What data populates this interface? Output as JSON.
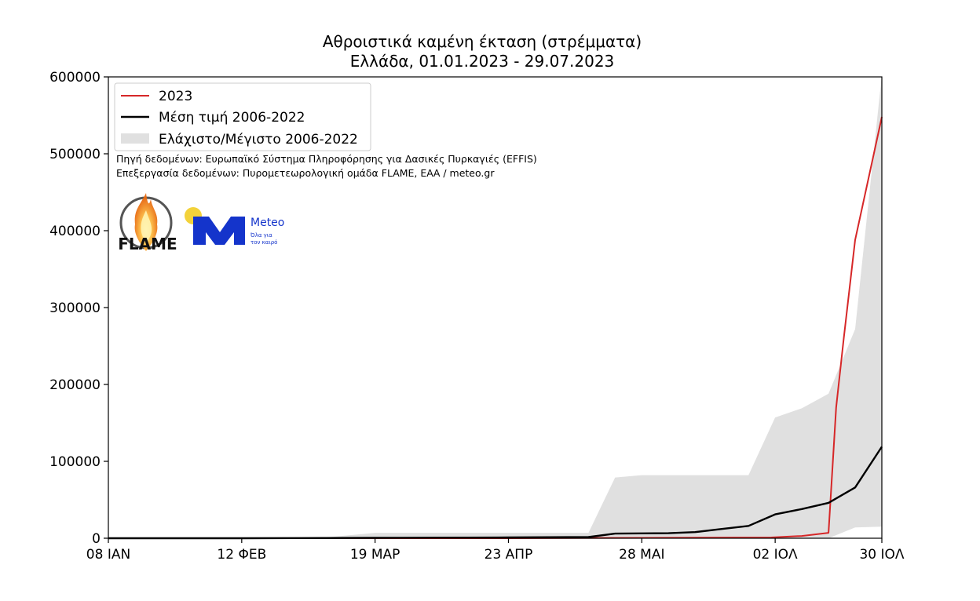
{
  "chart_data": {
    "type": "line",
    "title": "Αθροιστικά καμένη έκταση (στρέμματα)",
    "subtitle": "Ελλάδα, 01.01.2023 - 29.07.2023",
    "xlabel": "",
    "ylabel": "",
    "x_ticks": [
      "08 ΙΑΝ",
      "12 ΦΕΒ",
      "19 ΜΑΡ",
      "23 ΑΠΡ",
      "28 ΜΑΙ",
      "02 ΙΟΛ",
      "30 ΙΟΛ"
    ],
    "y_ticks": [
      "0",
      "100000",
      "200000",
      "300000",
      "400000",
      "500000",
      "600000"
    ],
    "xlim": [
      "2023-01-08",
      "2023-07-30"
    ],
    "ylim": [
      0,
      600000
    ],
    "grid": false,
    "legend_position": "top-left",
    "series": [
      {
        "name": "2023",
        "color": "#d62728",
        "kind": "line",
        "points": [
          [
            "2023-01-08",
            0
          ],
          [
            "2023-02-12",
            0
          ],
          [
            "2023-03-19",
            0
          ],
          [
            "2023-04-23",
            0
          ],
          [
            "2023-05-28",
            500
          ],
          [
            "2023-07-01",
            1000
          ],
          [
            "2023-07-09",
            3000
          ],
          [
            "2023-07-16",
            7000
          ],
          [
            "2023-07-18",
            170000
          ],
          [
            "2023-07-20",
            260000
          ],
          [
            "2023-07-23",
            388000
          ],
          [
            "2023-07-30",
            548000
          ]
        ]
      },
      {
        "name": "Μέση τιμή 2006-2022",
        "color": "#000000",
        "kind": "line",
        "points": [
          [
            "2023-01-08",
            0
          ],
          [
            "2023-02-12",
            0
          ],
          [
            "2023-03-19",
            500
          ],
          [
            "2023-04-23",
            1000
          ],
          [
            "2023-05-14",
            1500
          ],
          [
            "2023-05-21",
            6000
          ],
          [
            "2023-06-04",
            6500
          ],
          [
            "2023-06-11",
            8000
          ],
          [
            "2023-06-18",
            12000
          ],
          [
            "2023-06-25",
            16000
          ],
          [
            "2023-07-02",
            31000
          ],
          [
            "2023-07-09",
            38000
          ],
          [
            "2023-07-16",
            46000
          ],
          [
            "2023-07-23",
            66000
          ],
          [
            "2023-07-30",
            119000
          ]
        ]
      },
      {
        "name": "Ελάχιστο/Μέγιστο 2006-2022",
        "color": "#e0e0e0",
        "kind": "band",
        "upper": [
          [
            "2023-01-08",
            0
          ],
          [
            "2023-03-05",
            500
          ],
          [
            "2023-03-19",
            7000
          ],
          [
            "2023-04-23",
            7000
          ],
          [
            "2023-05-14",
            7000
          ],
          [
            "2023-05-21",
            79000
          ],
          [
            "2023-05-28",
            82000
          ],
          [
            "2023-06-25",
            82000
          ],
          [
            "2023-07-02",
            157000
          ],
          [
            "2023-07-09",
            169000
          ],
          [
            "2023-07-16",
            188000
          ],
          [
            "2023-07-23",
            272000
          ],
          [
            "2023-07-30",
            603000
          ]
        ],
        "lower": [
          [
            "2023-01-08",
            0
          ],
          [
            "2023-07-16",
            0
          ],
          [
            "2023-07-23",
            14000
          ],
          [
            "2023-07-30",
            15000
          ]
        ]
      }
    ],
    "annotations": [
      "Πηγή δεδομένων: Ευρωπαϊκό Σύστημα Πληροφόρησης για Δασικές Πυρκαγιές (EFFIS)",
      "Επεξεργασία δεδομένων: Πυρομετεωρολογική ομάδα FLAME, ΕΑΑ / meteo.gr"
    ]
  },
  "logos": {
    "flame": {
      "name": "FLAME",
      "ring_text": "EXTREME FIRE WEATHER & FIRE BEHAVIOUR",
      "icon": "flame-logo-icon",
      "color": "#ff9a1f"
    },
    "meteo": {
      "name": "Meteo",
      "tagline_1": "Όλα για",
      "tagline_2": "τον καιρό",
      "icon": "meteo-m-logo-icon",
      "sun_color": "#f3d23a",
      "brand_color": "#1434cb"
    }
  }
}
